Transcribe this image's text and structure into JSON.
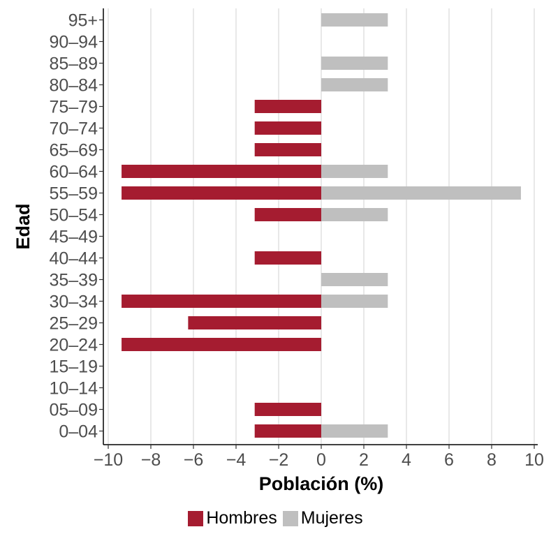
{
  "chart_data": {
    "type": "bar",
    "orientation": "horizontal",
    "xlabel": "Población (%)",
    "ylabel": "Edad",
    "xlim": [
      -10,
      10
    ],
    "xticks": [
      -10,
      -8,
      -6,
      -4,
      -2,
      0,
      2,
      4,
      6,
      8,
      10
    ],
    "xtick_labels": [
      "−10",
      "−8",
      "−6",
      "−4",
      "−2",
      "0",
      "2",
      "4",
      "6",
      "8",
      "10"
    ],
    "categories": [
      "0–04",
      "05–09",
      "10–14",
      "15–19",
      "20–24",
      "25–29",
      "30–34",
      "35–39",
      "40–44",
      "45–49",
      "50–54",
      "55–59",
      "60–64",
      "65–69",
      "70–74",
      "75–79",
      "80–84",
      "85–89",
      "90–94",
      "95+"
    ],
    "series": [
      {
        "name": "Hombres",
        "color": "#a51c30",
        "values": [
          -3.125,
          -3.125,
          0,
          0,
          -9.375,
          -6.25,
          -9.375,
          0,
          -3.125,
          0,
          -3.125,
          -9.375,
          -9.375,
          -3.125,
          -3.125,
          -3.125,
          0,
          0,
          0,
          0
        ]
      },
      {
        "name": "Mujeres",
        "color": "#bfbfbf",
        "values": [
          3.125,
          0,
          0,
          0,
          0,
          0,
          3.125,
          3.125,
          0,
          0,
          3.125,
          9.375,
          3.125,
          0,
          0,
          0,
          3.125,
          3.125,
          0,
          3.125
        ]
      }
    ],
    "grid": "vertical-major",
    "legend_position": "bottom"
  }
}
